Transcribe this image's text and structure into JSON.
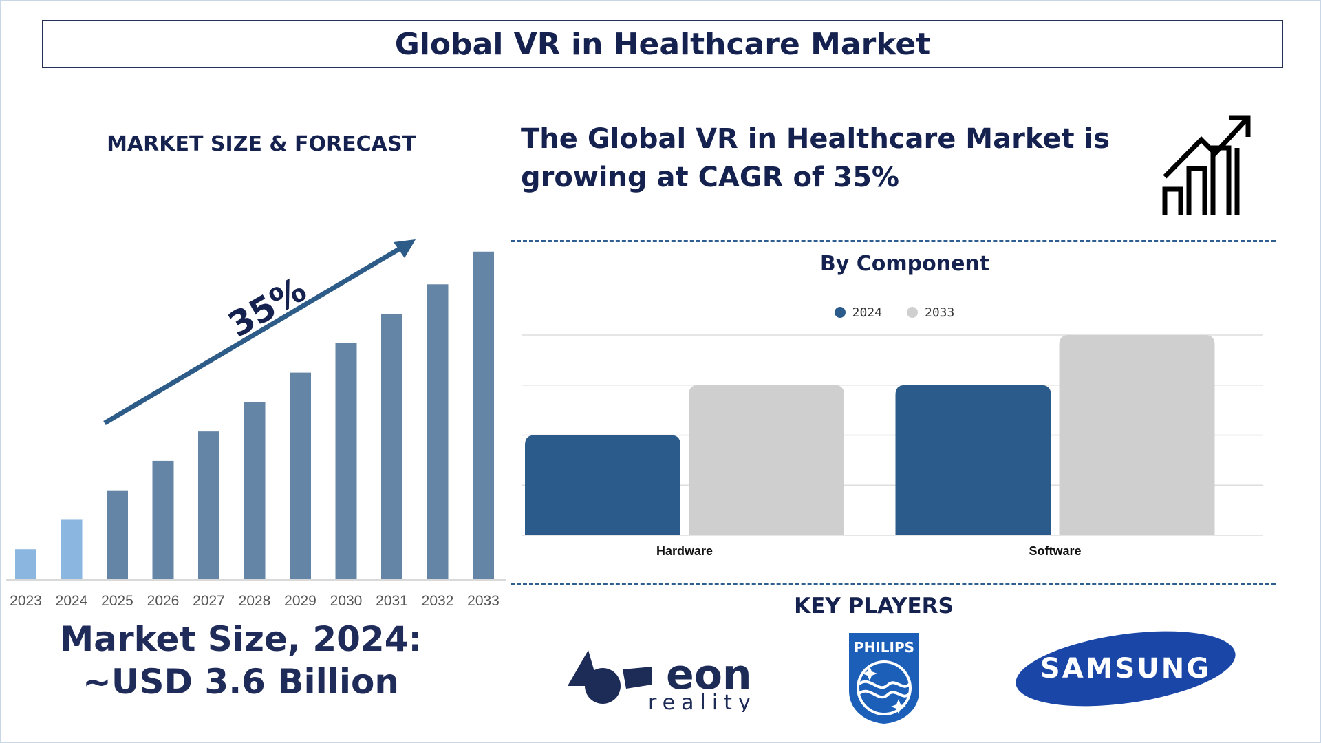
{
  "title": "Global VR in Healthcare Market",
  "market_size_heading": "MARKET SIZE & FORECAST",
  "cagr_text": "The Global VR in Healthcare Market is growing at CAGR of 35%",
  "growth_label": "35%",
  "market_size_text_line1": "Market Size, 2024:",
  "market_size_text_line2": "~USD 3.6 Billion",
  "key_players_heading": "KEY PLAYERS",
  "key_players": [
    "eon reality",
    "PHILIPS",
    "SAMSUNG"
  ],
  "colors": {
    "navy": "#15224f",
    "bar_light": "#8ab6e0",
    "bar_dark": "#6585a6",
    "arrow": "#2e5c88",
    "series_2024": "#2a5b8a",
    "series_2033": "#cfcfcf"
  },
  "icons": [
    "growth-chart-icon",
    "trend-arrow"
  ],
  "chart_data": [
    {
      "type": "bar",
      "title": "MARKET SIZE & FORECAST",
      "categories": [
        "2023",
        "2024",
        "2025",
        "2026",
        "2027",
        "2028",
        "2029",
        "2030",
        "2031",
        "2032",
        "2033"
      ],
      "values": [
        0.9,
        1.8,
        2.7,
        3.6,
        4.5,
        5.4,
        6.3,
        7.2,
        8.1,
        9.0,
        10.0
      ],
      "highlight": [
        "2023",
        "2024"
      ],
      "ylim": [
        0,
        10.5
      ],
      "axis_labels_shown": false,
      "annotation": "35%"
    },
    {
      "type": "bar",
      "title": "By Component",
      "categories": [
        "Hardware",
        "Software"
      ],
      "series": [
        {
          "name": "2024",
          "values": [
            2,
            3
          ]
        },
        {
          "name": "2033",
          "values": [
            3,
            4
          ]
        }
      ],
      "ylim": [
        0,
        4
      ],
      "grid": true,
      "legend": "top-center"
    }
  ]
}
